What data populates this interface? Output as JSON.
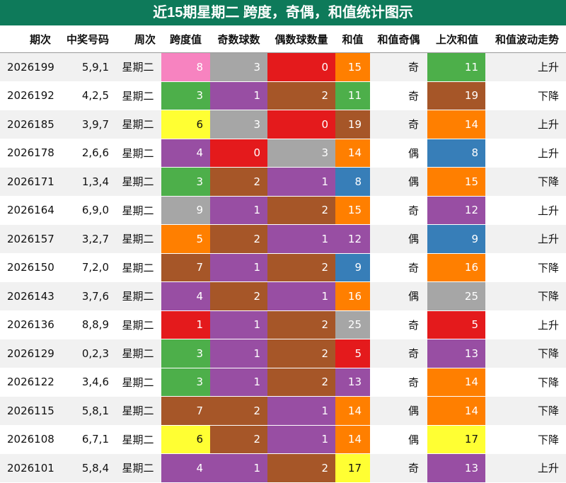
{
  "title": "近15期星期二 跨度，奇偶，和值统计图示",
  "headers": [
    "期次",
    "中奖号码",
    "周次",
    "跨度值",
    "奇数球数",
    "偶数球数量",
    "和值",
    "和值奇偶",
    "上次和值",
    "和值波动走势"
  ],
  "colors": {
    "pink": "#f783c0",
    "gray": "#a6a6a6",
    "red": "#e41a1c",
    "orange": "#ff7f00",
    "green": "#4daf4a",
    "brown": "#a65628",
    "purple": "#984ea3",
    "yellow": "#ffff33",
    "blue": "#377eb8",
    "title_bg": "#0e7a5a"
  },
  "rows": [
    {
      "period": "2026199",
      "numbers": "5,9,1",
      "weekday": "星期二",
      "span": "8",
      "odd": "3",
      "even": "0",
      "sum": "15",
      "parity": "奇",
      "prev_sum": "11",
      "trend": "上升",
      "c": [
        "pink",
        "gray",
        "red",
        "orange",
        "green"
      ]
    },
    {
      "period": "2026192",
      "numbers": "4,2,5",
      "weekday": "星期二",
      "span": "3",
      "odd": "1",
      "even": "2",
      "sum": "11",
      "parity": "奇",
      "prev_sum": "19",
      "trend": "下降",
      "c": [
        "green",
        "purple",
        "brown",
        "green",
        "brown"
      ]
    },
    {
      "period": "2026185",
      "numbers": "3,9,7",
      "weekday": "星期二",
      "span": "6",
      "odd": "3",
      "even": "0",
      "sum": "19",
      "parity": "奇",
      "prev_sum": "14",
      "trend": "上升",
      "c": [
        "yellow",
        "gray",
        "red",
        "brown",
        "orange"
      ]
    },
    {
      "period": "2026178",
      "numbers": "2,6,6",
      "weekday": "星期二",
      "span": "4",
      "odd": "0",
      "even": "3",
      "sum": "14",
      "parity": "偶",
      "prev_sum": "8",
      "trend": "上升",
      "c": [
        "purple",
        "red",
        "gray",
        "orange",
        "blue"
      ]
    },
    {
      "period": "2026171",
      "numbers": "1,3,4",
      "weekday": "星期二",
      "span": "3",
      "odd": "2",
      "even": "1",
      "sum": "8",
      "parity": "偶",
      "prev_sum": "15",
      "trend": "下降",
      "c": [
        "green",
        "brown",
        "purple",
        "blue",
        "orange"
      ]
    },
    {
      "period": "2026164",
      "numbers": "6,9,0",
      "weekday": "星期二",
      "span": "9",
      "odd": "1",
      "even": "2",
      "sum": "15",
      "parity": "奇",
      "prev_sum": "12",
      "trend": "上升",
      "c": [
        "gray",
        "purple",
        "brown",
        "orange",
        "purple"
      ]
    },
    {
      "period": "2026157",
      "numbers": "3,2,7",
      "weekday": "星期二",
      "span": "5",
      "odd": "2",
      "even": "1",
      "sum": "12",
      "parity": "偶",
      "prev_sum": "9",
      "trend": "上升",
      "c": [
        "orange",
        "brown",
        "purple",
        "purple",
        "blue"
      ]
    },
    {
      "period": "2026150",
      "numbers": "7,2,0",
      "weekday": "星期二",
      "span": "7",
      "odd": "1",
      "even": "2",
      "sum": "9",
      "parity": "奇",
      "prev_sum": "16",
      "trend": "下降",
      "c": [
        "brown",
        "purple",
        "brown",
        "blue",
        "orange"
      ]
    },
    {
      "period": "2026143",
      "numbers": "3,7,6",
      "weekday": "星期二",
      "span": "4",
      "odd": "2",
      "even": "1",
      "sum": "16",
      "parity": "偶",
      "prev_sum": "25",
      "trend": "下降",
      "c": [
        "purple",
        "brown",
        "purple",
        "orange",
        "gray"
      ]
    },
    {
      "period": "2026136",
      "numbers": "8,8,9",
      "weekday": "星期二",
      "span": "1",
      "odd": "1",
      "even": "2",
      "sum": "25",
      "parity": "奇",
      "prev_sum": "5",
      "trend": "上升",
      "c": [
        "red",
        "purple",
        "brown",
        "gray",
        "red"
      ]
    },
    {
      "period": "2026129",
      "numbers": "0,2,3",
      "weekday": "星期二",
      "span": "3",
      "odd": "1",
      "even": "2",
      "sum": "5",
      "parity": "奇",
      "prev_sum": "13",
      "trend": "下降",
      "c": [
        "green",
        "purple",
        "brown",
        "red",
        "purple"
      ]
    },
    {
      "period": "2026122",
      "numbers": "3,4,6",
      "weekday": "星期二",
      "span": "3",
      "odd": "1",
      "even": "2",
      "sum": "13",
      "parity": "奇",
      "prev_sum": "14",
      "trend": "下降",
      "c": [
        "green",
        "purple",
        "brown",
        "purple",
        "orange"
      ]
    },
    {
      "period": "2026115",
      "numbers": "5,8,1",
      "weekday": "星期二",
      "span": "7",
      "odd": "2",
      "even": "1",
      "sum": "14",
      "parity": "偶",
      "prev_sum": "14",
      "trend": "下降",
      "c": [
        "brown",
        "brown",
        "purple",
        "orange",
        "orange"
      ]
    },
    {
      "period": "2026108",
      "numbers": "6,7,1",
      "weekday": "星期二",
      "span": "6",
      "odd": "2",
      "even": "1",
      "sum": "14",
      "parity": "偶",
      "prev_sum": "17",
      "trend": "下降",
      "c": [
        "yellow",
        "brown",
        "purple",
        "orange",
        "yellow"
      ]
    },
    {
      "period": "2026101",
      "numbers": "5,8,4",
      "weekday": "星期二",
      "span": "4",
      "odd": "1",
      "even": "2",
      "sum": "17",
      "parity": "奇",
      "prev_sum": "13",
      "trend": "上升",
      "c": [
        "purple",
        "purple",
        "brown",
        "yellow",
        "purple"
      ]
    }
  ]
}
